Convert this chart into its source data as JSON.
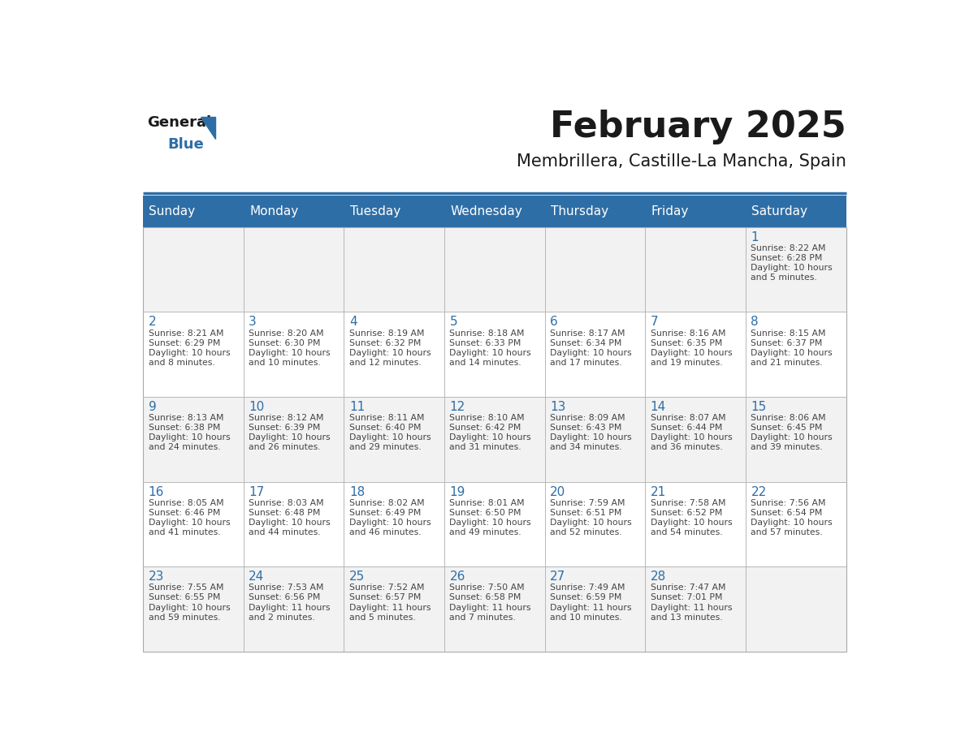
{
  "title": "February 2025",
  "subtitle": "Membrillera, Castille-La Mancha, Spain",
  "header_bg": "#2E6EA6",
  "header_text": "#FFFFFF",
  "day_names": [
    "Sunday",
    "Monday",
    "Tuesday",
    "Wednesday",
    "Thursday",
    "Friday",
    "Saturday"
  ],
  "cell_bg_odd": "#F2F2F2",
  "cell_bg_even": "#FFFFFF",
  "cell_border": "#AAAAAA",
  "day_num_color": "#2E6EA6",
  "info_color": "#444444",
  "title_color": "#1A1A1A",
  "subtitle_color": "#1A1A1A",
  "logo_general_color": "#1A1A1A",
  "logo_blue_color": "#2E6EA6",
  "weeks": [
    [
      {
        "day": null,
        "info": ""
      },
      {
        "day": null,
        "info": ""
      },
      {
        "day": null,
        "info": ""
      },
      {
        "day": null,
        "info": ""
      },
      {
        "day": null,
        "info": ""
      },
      {
        "day": null,
        "info": ""
      },
      {
        "day": 1,
        "info": "Sunrise: 8:22 AM\nSunset: 6:28 PM\nDaylight: 10 hours\nand 5 minutes."
      }
    ],
    [
      {
        "day": 2,
        "info": "Sunrise: 8:21 AM\nSunset: 6:29 PM\nDaylight: 10 hours\nand 8 minutes."
      },
      {
        "day": 3,
        "info": "Sunrise: 8:20 AM\nSunset: 6:30 PM\nDaylight: 10 hours\nand 10 minutes."
      },
      {
        "day": 4,
        "info": "Sunrise: 8:19 AM\nSunset: 6:32 PM\nDaylight: 10 hours\nand 12 minutes."
      },
      {
        "day": 5,
        "info": "Sunrise: 8:18 AM\nSunset: 6:33 PM\nDaylight: 10 hours\nand 14 minutes."
      },
      {
        "day": 6,
        "info": "Sunrise: 8:17 AM\nSunset: 6:34 PM\nDaylight: 10 hours\nand 17 minutes."
      },
      {
        "day": 7,
        "info": "Sunrise: 8:16 AM\nSunset: 6:35 PM\nDaylight: 10 hours\nand 19 minutes."
      },
      {
        "day": 8,
        "info": "Sunrise: 8:15 AM\nSunset: 6:37 PM\nDaylight: 10 hours\nand 21 minutes."
      }
    ],
    [
      {
        "day": 9,
        "info": "Sunrise: 8:13 AM\nSunset: 6:38 PM\nDaylight: 10 hours\nand 24 minutes."
      },
      {
        "day": 10,
        "info": "Sunrise: 8:12 AM\nSunset: 6:39 PM\nDaylight: 10 hours\nand 26 minutes."
      },
      {
        "day": 11,
        "info": "Sunrise: 8:11 AM\nSunset: 6:40 PM\nDaylight: 10 hours\nand 29 minutes."
      },
      {
        "day": 12,
        "info": "Sunrise: 8:10 AM\nSunset: 6:42 PM\nDaylight: 10 hours\nand 31 minutes."
      },
      {
        "day": 13,
        "info": "Sunrise: 8:09 AM\nSunset: 6:43 PM\nDaylight: 10 hours\nand 34 minutes."
      },
      {
        "day": 14,
        "info": "Sunrise: 8:07 AM\nSunset: 6:44 PM\nDaylight: 10 hours\nand 36 minutes."
      },
      {
        "day": 15,
        "info": "Sunrise: 8:06 AM\nSunset: 6:45 PM\nDaylight: 10 hours\nand 39 minutes."
      }
    ],
    [
      {
        "day": 16,
        "info": "Sunrise: 8:05 AM\nSunset: 6:46 PM\nDaylight: 10 hours\nand 41 minutes."
      },
      {
        "day": 17,
        "info": "Sunrise: 8:03 AM\nSunset: 6:48 PM\nDaylight: 10 hours\nand 44 minutes."
      },
      {
        "day": 18,
        "info": "Sunrise: 8:02 AM\nSunset: 6:49 PM\nDaylight: 10 hours\nand 46 minutes."
      },
      {
        "day": 19,
        "info": "Sunrise: 8:01 AM\nSunset: 6:50 PM\nDaylight: 10 hours\nand 49 minutes."
      },
      {
        "day": 20,
        "info": "Sunrise: 7:59 AM\nSunset: 6:51 PM\nDaylight: 10 hours\nand 52 minutes."
      },
      {
        "day": 21,
        "info": "Sunrise: 7:58 AM\nSunset: 6:52 PM\nDaylight: 10 hours\nand 54 minutes."
      },
      {
        "day": 22,
        "info": "Sunrise: 7:56 AM\nSunset: 6:54 PM\nDaylight: 10 hours\nand 57 minutes."
      }
    ],
    [
      {
        "day": 23,
        "info": "Sunrise: 7:55 AM\nSunset: 6:55 PM\nDaylight: 10 hours\nand 59 minutes."
      },
      {
        "day": 24,
        "info": "Sunrise: 7:53 AM\nSunset: 6:56 PM\nDaylight: 11 hours\nand 2 minutes."
      },
      {
        "day": 25,
        "info": "Sunrise: 7:52 AM\nSunset: 6:57 PM\nDaylight: 11 hours\nand 5 minutes."
      },
      {
        "day": 26,
        "info": "Sunrise: 7:50 AM\nSunset: 6:58 PM\nDaylight: 11 hours\nand 7 minutes."
      },
      {
        "day": 27,
        "info": "Sunrise: 7:49 AM\nSunset: 6:59 PM\nDaylight: 11 hours\nand 10 minutes."
      },
      {
        "day": 28,
        "info": "Sunrise: 7:47 AM\nSunset: 7:01 PM\nDaylight: 11 hours\nand 13 minutes."
      },
      {
        "day": null,
        "info": ""
      }
    ]
  ]
}
